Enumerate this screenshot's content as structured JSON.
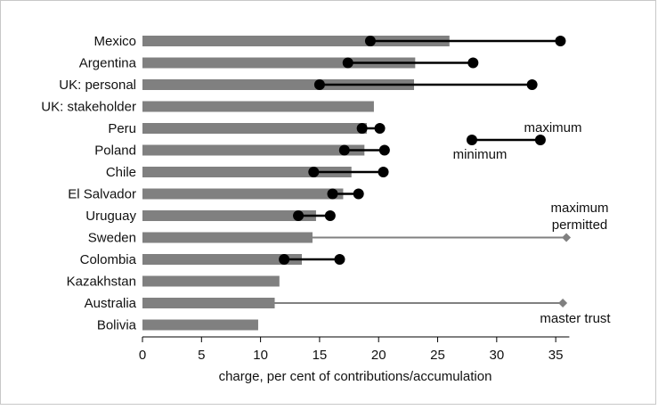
{
  "chart_data": {
    "type": "bar",
    "orientation": "horizontal",
    "xlabel": "charge, per cent of contributions/accumulation",
    "xlim": [
      0,
      36
    ],
    "xticks": [
      0,
      5,
      10,
      15,
      20,
      25,
      30,
      35
    ],
    "grid": false,
    "categories": [
      "Mexico",
      "Argentina",
      "UK: personal",
      "UK: stakeholder",
      "Peru",
      "Poland",
      "Chile",
      "El Salvador",
      "Uruguay",
      "Sweden",
      "Colombia",
      "Kazakhstan",
      "Australia",
      "Bolivia"
    ],
    "values": [
      26.0,
      23.1,
      23.0,
      19.6,
      19.0,
      18.8,
      17.7,
      17.0,
      14.7,
      14.4,
      13.5,
      11.6,
      11.2,
      9.8
    ],
    "ranges": [
      {
        "category": "Mexico",
        "min": 19.3,
        "max": 35.4
      },
      {
        "category": "Argentina",
        "min": 17.4,
        "max": 28.0
      },
      {
        "category": "UK: personal",
        "min": 15.0,
        "max": 33.0
      },
      {
        "category": "Peru",
        "min": 18.6,
        "max": 20.1
      },
      {
        "category": "Poland",
        "min": 17.1,
        "max": 20.5
      },
      {
        "category": "Chile",
        "min": 14.5,
        "max": 20.4
      },
      {
        "category": "El Salvador",
        "min": 16.1,
        "max": 18.3
      },
      {
        "category": "Uruguay",
        "min": 13.2,
        "max": 15.9
      },
      {
        "category": "Colombia",
        "min": 12.0,
        "max": 16.7
      }
    ],
    "caps": [
      {
        "category": "Sweden",
        "value": 35.9
      },
      {
        "category": "Australia",
        "value": 35.6
      }
    ],
    "legend": {
      "min_label": "minimum",
      "max_label": "maximum",
      "min_value": 27.9,
      "max_value": 33.7
    },
    "annotations": {
      "sweden_cap_line1": "maximum",
      "sweden_cap_line2": "permitted",
      "australia_cap": "master trust"
    },
    "colors": {
      "bar": "#808080",
      "range": "#000000",
      "cap": "#808080"
    }
  }
}
